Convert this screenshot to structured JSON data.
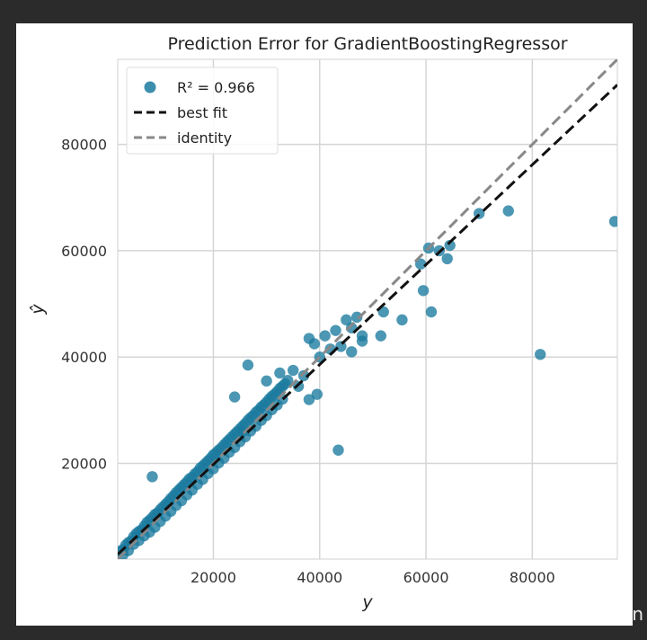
{
  "watermark": "知乎 @Alan",
  "chart_data": {
    "type": "scatter",
    "title": "Prediction Error for GradientBoostingRegressor",
    "xlabel": "y",
    "ylabel": "ŷ",
    "xlim": [
      2000,
      96000
    ],
    "ylim": [
      2000,
      96000
    ],
    "xticks": [
      20000,
      40000,
      60000,
      80000
    ],
    "yticks": [
      20000,
      40000,
      60000,
      80000
    ],
    "grid": true,
    "legend": {
      "position": "top-left",
      "entries": [
        {
          "kind": "marker",
          "label": "R² = 0.966",
          "color": "#1a7a9e"
        },
        {
          "kind": "line",
          "label": "best fit",
          "color": "#111111"
        },
        {
          "kind": "line",
          "label": "identity",
          "color": "#888888"
        }
      ]
    },
    "series": [
      {
        "marker_color": "#1a7a9e",
        "x": [
          2500,
          3000,
          3500,
          4000,
          4500,
          5000,
          5500,
          6000,
          6500,
          7000,
          7500,
          8000,
          8500,
          9000,
          9500,
          10000,
          10500,
          11000,
          11500,
          12000,
          12500,
          13000,
          13500,
          14000,
          14500,
          15000,
          15500,
          16000,
          16500,
          17000,
          17500,
          18000,
          18500,
          19000,
          19500,
          20000,
          20500,
          21000,
          21500,
          22000,
          22500,
          23000,
          23500,
          24000,
          24500,
          25000,
          25500,
          26000,
          26500,
          27000,
          27500,
          28000,
          28500,
          29000,
          29500,
          30000,
          30500,
          31000,
          31500,
          32000,
          32500,
          33000,
          33500,
          34000,
          3000,
          4000,
          5000,
          6000,
          7000,
          8000,
          9000,
          10000,
          11000,
          12000,
          13000,
          14000,
          15000,
          16000,
          17000,
          18000,
          19000,
          20000,
          21000,
          22000,
          23000,
          24000,
          25000,
          26000,
          27000,
          28000,
          29000,
          30000,
          31000,
          32000,
          33000,
          8500,
          26500,
          24000,
          25500,
          30000,
          32500,
          35000,
          36000,
          37000,
          38000,
          39000,
          40000,
          41000,
          42000,
          43000,
          44000,
          45000,
          46000,
          47000,
          48000,
          38000,
          39500,
          43500,
          46000,
          48000,
          51500,
          52000,
          55500,
          59500,
          60500,
          61000,
          62500,
          64000,
          64500,
          70000,
          75500,
          59000,
          81500,
          95500
        ],
        "y": [
          3500,
          3800,
          4600,
          5100,
          5400,
          6200,
          6800,
          7200,
          7500,
          8200,
          8900,
          9300,
          9800,
          10400,
          10700,
          11300,
          11800,
          12300,
          12800,
          13400,
          13900,
          14500,
          15000,
          15500,
          16000,
          16500,
          17100,
          17400,
          18000,
          18400,
          19100,
          19500,
          20000,
          20500,
          21000,
          21600,
          22000,
          22500,
          22900,
          23500,
          24000,
          24500,
          25000,
          25500,
          26000,
          26500,
          27000,
          27500,
          28100,
          28600,
          29000,
          29600,
          30000,
          30600,
          31000,
          31500,
          32100,
          32600,
          33000,
          33500,
          34100,
          34500,
          35000,
          35600,
          2800,
          3600,
          4800,
          5500,
          6400,
          7100,
          8000,
          9100,
          10100,
          11000,
          12100,
          13000,
          14100,
          15000,
          16100,
          17000,
          18100,
          19000,
          20100,
          21000,
          22100,
          23000,
          24100,
          25000,
          26100,
          27000,
          28100,
          29000,
          30100,
          31000,
          32100,
          17500,
          38500,
          32500,
          26000,
          35500,
          37000,
          37500,
          34500,
          36500,
          43500,
          42500,
          40000,
          44000,
          41500,
          45000,
          42000,
          47000,
          45500,
          47500,
          44000,
          32000,
          33000,
          22500,
          41000,
          43000,
          44000,
          48500,
          47000,
          52500,
          60500,
          48500,
          60000,
          58500,
          61000,
          67000,
          67500,
          57500,
          40500,
          65500
        ]
      }
    ],
    "best_fit": {
      "x": [
        2000,
        96000
      ],
      "y": [
        2900,
        91200
      ]
    },
    "identity": {
      "x": [
        2000,
        96000
      ],
      "y": [
        2000,
        96000
      ]
    }
  }
}
